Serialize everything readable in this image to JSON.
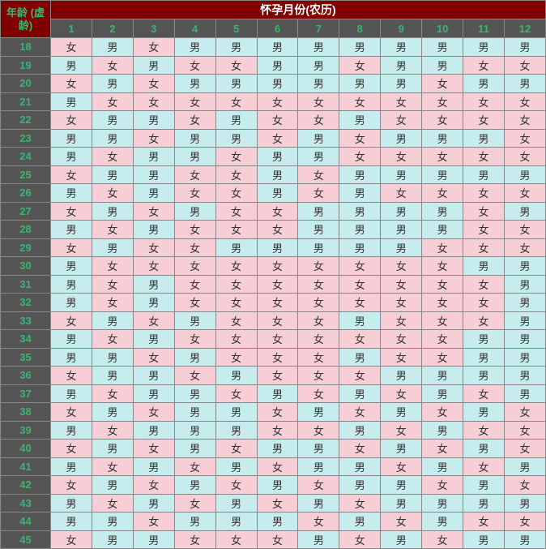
{
  "title_month": "怀孕月份(农历)",
  "title_age": "年龄\n(虚龄)",
  "months": [
    "1",
    "2",
    "3",
    "4",
    "5",
    "6",
    "7",
    "8",
    "9",
    "10",
    "11",
    "12"
  ],
  "female_label": "女",
  "male_label": "男",
  "colors": {
    "header_bg": "#800000",
    "header_text": "#ffffff",
    "sub_header_bg": "#555555",
    "accent_text": "#3cb371",
    "female_bg": "#f7cdd6",
    "male_bg": "#c7ecee",
    "border": "#888888"
  },
  "rows": [
    {
      "age": "18",
      "v": [
        "女",
        "男",
        "女",
        "男",
        "男",
        "男",
        "男",
        "男",
        "男",
        "男",
        "男",
        "男"
      ]
    },
    {
      "age": "19",
      "v": [
        "男",
        "女",
        "男",
        "女",
        "女",
        "男",
        "男",
        "女",
        "男",
        "男",
        "女",
        "女"
      ]
    },
    {
      "age": "20",
      "v": [
        "女",
        "男",
        "女",
        "男",
        "男",
        "男",
        "男",
        "男",
        "男",
        "女",
        "男",
        "男"
      ]
    },
    {
      "age": "21",
      "v": [
        "男",
        "女",
        "女",
        "女",
        "女",
        "女",
        "女",
        "女",
        "女",
        "女",
        "女",
        "女"
      ]
    },
    {
      "age": "22",
      "v": [
        "女",
        "男",
        "男",
        "女",
        "男",
        "女",
        "女",
        "男",
        "女",
        "女",
        "女",
        "女"
      ]
    },
    {
      "age": "23",
      "v": [
        "男",
        "男",
        "女",
        "男",
        "男",
        "女",
        "男",
        "女",
        "男",
        "男",
        "男",
        "女"
      ]
    },
    {
      "age": "24",
      "v": [
        "男",
        "女",
        "男",
        "男",
        "女",
        "男",
        "男",
        "女",
        "女",
        "女",
        "女",
        "女"
      ]
    },
    {
      "age": "25",
      "v": [
        "女",
        "男",
        "男",
        "女",
        "女",
        "男",
        "女",
        "男",
        "男",
        "男",
        "男",
        "男"
      ]
    },
    {
      "age": "26",
      "v": [
        "男",
        "女",
        "男",
        "女",
        "女",
        "男",
        "女",
        "男",
        "女",
        "女",
        "女",
        "女"
      ]
    },
    {
      "age": "27",
      "v": [
        "女",
        "男",
        "女",
        "男",
        "女",
        "女",
        "男",
        "男",
        "男",
        "男",
        "女",
        "男"
      ]
    },
    {
      "age": "28",
      "v": [
        "男",
        "女",
        "男",
        "女",
        "女",
        "女",
        "男",
        "男",
        "男",
        "男",
        "女",
        "女"
      ]
    },
    {
      "age": "29",
      "v": [
        "女",
        "男",
        "女",
        "女",
        "男",
        "男",
        "男",
        "男",
        "男",
        "女",
        "女",
        "女"
      ]
    },
    {
      "age": "30",
      "v": [
        "男",
        "女",
        "女",
        "女",
        "女",
        "女",
        "女",
        "女",
        "女",
        "女",
        "男",
        "男"
      ]
    },
    {
      "age": "31",
      "v": [
        "男",
        "女",
        "男",
        "女",
        "女",
        "女",
        "女",
        "女",
        "女",
        "女",
        "女",
        "男"
      ]
    },
    {
      "age": "32",
      "v": [
        "男",
        "女",
        "男",
        "女",
        "女",
        "女",
        "女",
        "女",
        "女",
        "女",
        "女",
        "男"
      ]
    },
    {
      "age": "33",
      "v": [
        "女",
        "男",
        "女",
        "男",
        "女",
        "女",
        "女",
        "男",
        "女",
        "女",
        "女",
        "男"
      ]
    },
    {
      "age": "34",
      "v": [
        "男",
        "女",
        "男",
        "女",
        "女",
        "女",
        "女",
        "女",
        "女",
        "女",
        "男",
        "男"
      ]
    },
    {
      "age": "35",
      "v": [
        "男",
        "男",
        "女",
        "男",
        "女",
        "女",
        "女",
        "男",
        "女",
        "女",
        "男",
        "男"
      ]
    },
    {
      "age": "36",
      "v": [
        "女",
        "男",
        "男",
        "女",
        "男",
        "女",
        "女",
        "女",
        "男",
        "男",
        "男",
        "男"
      ]
    },
    {
      "age": "37",
      "v": [
        "男",
        "女",
        "男",
        "男",
        "女",
        "男",
        "女",
        "男",
        "女",
        "男",
        "女",
        "男"
      ]
    },
    {
      "age": "38",
      "v": [
        "女",
        "男",
        "女",
        "男",
        "男",
        "女",
        "男",
        "女",
        "男",
        "女",
        "男",
        "女"
      ]
    },
    {
      "age": "39",
      "v": [
        "男",
        "女",
        "男",
        "男",
        "男",
        "女",
        "女",
        "男",
        "女",
        "男",
        "女",
        "女"
      ]
    },
    {
      "age": "40",
      "v": [
        "女",
        "男",
        "女",
        "男",
        "女",
        "男",
        "男",
        "女",
        "男",
        "女",
        "男",
        "女"
      ]
    },
    {
      "age": "41",
      "v": [
        "男",
        "女",
        "男",
        "女",
        "男",
        "女",
        "男",
        "男",
        "女",
        "男",
        "女",
        "男"
      ]
    },
    {
      "age": "42",
      "v": [
        "女",
        "男",
        "女",
        "男",
        "女",
        "男",
        "女",
        "男",
        "男",
        "女",
        "男",
        "女"
      ]
    },
    {
      "age": "43",
      "v": [
        "男",
        "女",
        "男",
        "女",
        "男",
        "女",
        "男",
        "女",
        "男",
        "男",
        "男",
        "男"
      ]
    },
    {
      "age": "44",
      "v": [
        "男",
        "男",
        "女",
        "男",
        "男",
        "男",
        "女",
        "男",
        "女",
        "男",
        "女",
        "女"
      ]
    },
    {
      "age": "45",
      "v": [
        "女",
        "男",
        "男",
        "女",
        "女",
        "女",
        "男",
        "女",
        "男",
        "女",
        "男",
        "男"
      ]
    }
  ]
}
